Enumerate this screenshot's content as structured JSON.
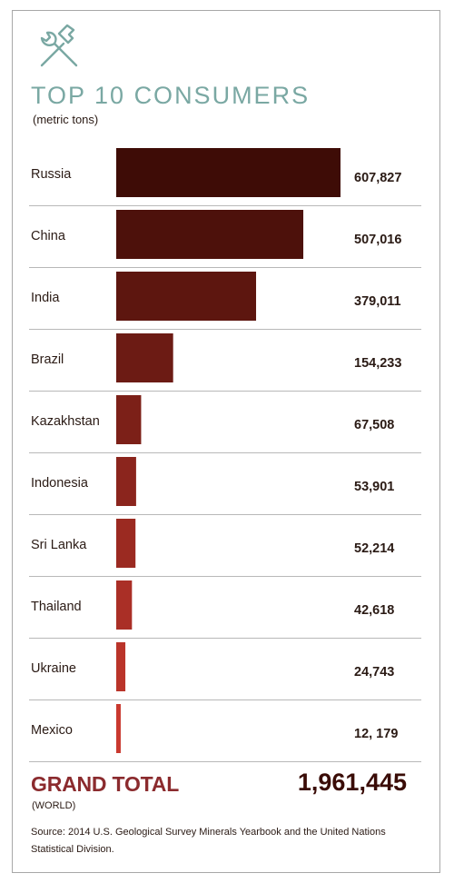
{
  "title": "TOP 10 CONSUMERS",
  "subtitle": "(metric tons)",
  "icon": "hammer-wrench-icon",
  "colors": {
    "title": "#7aa8a3",
    "bar_dark": "#3e0c06",
    "bar_light": "#c9392f",
    "grand_total_label": "#8b2b2e",
    "text": "#2a1a14"
  },
  "chart_data": {
    "type": "bar",
    "orientation": "horizontal",
    "title": "TOP 10 CONSUMERS",
    "subtitle": "(metric tons)",
    "categories": [
      "Russia",
      "China",
      "India",
      "Brazil",
      "Kazakhstan",
      "Indonesia",
      "Sri Lanka",
      "Thailand",
      "Ukraine",
      "Mexico"
    ],
    "values": [
      607827,
      507016,
      379011,
      154233,
      67508,
      53901,
      52214,
      42618,
      24743,
      12179
    ],
    "value_labels": [
      "607,827",
      "507,016",
      "379,011",
      "154,233",
      "67,508",
      "53,901",
      "52,214",
      "42,618",
      "24,743",
      "12, 179"
    ],
    "xlim": [
      0,
      607827
    ],
    "grid": false,
    "legend": "none"
  },
  "grand_total": {
    "label": "GRAND TOTAL",
    "sublabel": "(WORLD)",
    "value": "1,961,445"
  },
  "source": "Source: 2014 U.S. Geological Survey Minerals Yearbook and the United Nations Statistical Division."
}
